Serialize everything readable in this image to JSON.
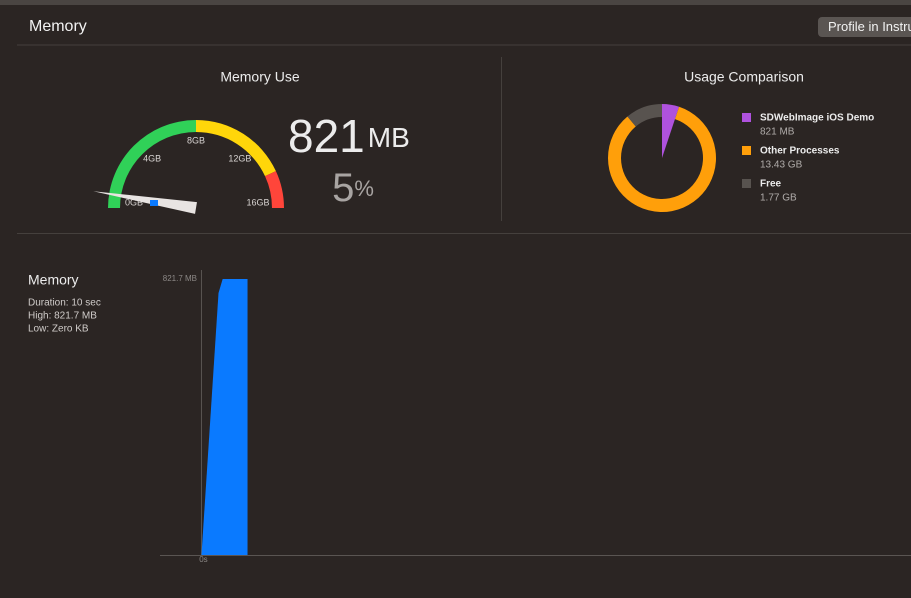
{
  "header": {
    "title": "Memory",
    "button": "Profile in Instruments"
  },
  "memory_use": {
    "title": "Memory Use",
    "value": 821,
    "unit": "MB",
    "percent": 5,
    "percent_unit": "%",
    "gauge": {
      "lim": [
        0,
        16000
      ],
      "ticks": [
        {
          "value": 0,
          "label": "0GB"
        },
        {
          "value": 4000,
          "label": "4GB"
        },
        {
          "value": 8000,
          "label": "8GB"
        },
        {
          "value": 12000,
          "label": "12GB"
        },
        {
          "value": 16000,
          "label": "16GB"
        }
      ],
      "zones": [
        {
          "to": 8000,
          "color": "#30d158"
        },
        {
          "to": 13800,
          "color": "#ffd60a"
        },
        {
          "to": 16000,
          "color": "#ff453a"
        }
      ]
    }
  },
  "usage_comparison": {
    "title": "Usage Comparison",
    "segments": [
      {
        "name": "SDWebImage iOS Demo",
        "value": 0.821,
        "value_label": "821 MB",
        "color": "#af52de"
      },
      {
        "name": "Other Processes",
        "value": 13.43,
        "value_label": "13.43 GB",
        "color": "#ff9f0a"
      },
      {
        "name": "Free",
        "value": 1.77,
        "value_label": "1.77 GB",
        "color": "#58534f"
      }
    ]
  },
  "chart_data": {
    "type": "area",
    "title": "Memory",
    "stats": [
      "Duration: 10 sec",
      "High: 821.7 MB",
      "Low: Zero KB"
    ],
    "x": [
      0,
      3.7,
      4.6,
      10,
      10
    ],
    "values": [
      0,
      780,
      821.7,
      821.7,
      0
    ],
    "color": "#0a7aff",
    "xlim": [
      -9,
      154
    ],
    "ylim": [
      0,
      821.7
    ],
    "xticks": [
      {
        "value": 0,
        "label": "0s"
      }
    ],
    "yticks": [
      {
        "value": 821.7,
        "label": "821.7 MB"
      }
    ]
  }
}
